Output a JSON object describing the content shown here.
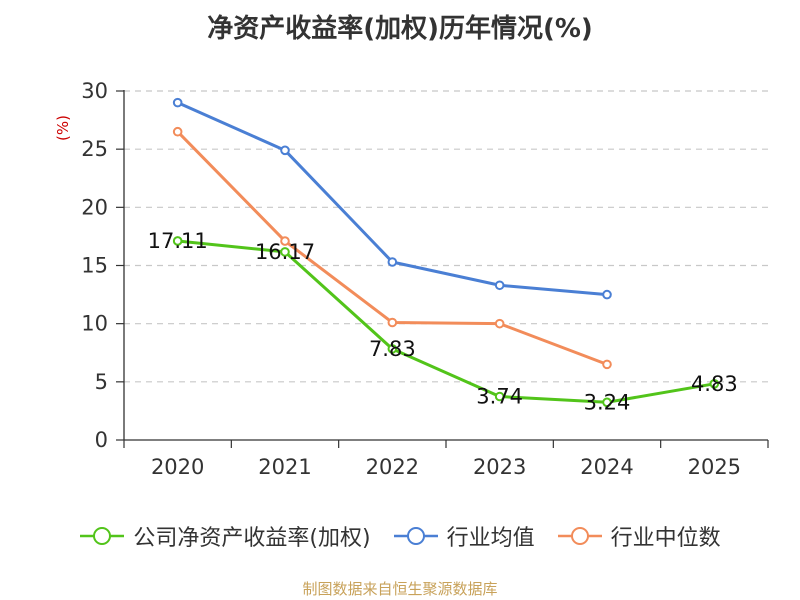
{
  "chart_data": {
    "type": "line",
    "title": "净资产收益率(加权)历年情况(%)",
    "ylabel": "(%)",
    "xlabel": "",
    "categories": [
      "2020",
      "2021",
      "2022",
      "2023",
      "2024",
      "2025"
    ],
    "ylim": [
      0,
      30
    ],
    "yticks": [
      0,
      5,
      10,
      15,
      20,
      25,
      30
    ],
    "grid": true,
    "legend_position": "bottom",
    "series": [
      {
        "name": "公司净资产收益率(加权)",
        "color": "#52c41a",
        "values": [
          17.11,
          16.17,
          7.83,
          3.74,
          3.24,
          4.83
        ],
        "labels": [
          "17.11",
          "16.17",
          "7.83",
          "3.74",
          "3.24",
          "4.83"
        ]
      },
      {
        "name": "行业均值",
        "color": "#4a7fd4",
        "values": [
          29.0,
          24.9,
          15.3,
          13.3,
          12.5,
          null
        ]
      },
      {
        "name": "行业中位数",
        "color": "#f28c5a",
        "values": [
          26.5,
          17.1,
          10.1,
          10.0,
          6.5,
          null
        ]
      }
    ]
  },
  "source": "制图数据来自恒生聚源数据库",
  "colors": {
    "ylabel": "#cc0000",
    "axis": "#333333",
    "grid": "#c8c8c8"
  }
}
